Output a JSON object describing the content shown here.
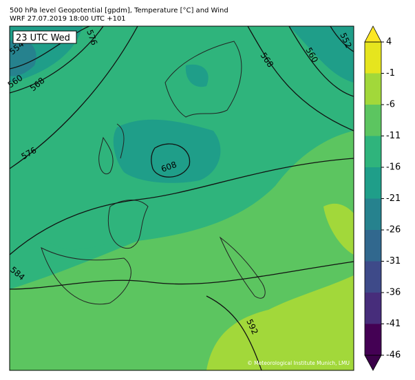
{
  "header": {
    "title": "500 hPa level Geopotential [gpdm], Temperature [°C] and Wind",
    "subtitle": "WRF 27.07.2019 18:00 UTC +101"
  },
  "time_label": "23 UTC Wed",
  "contour_labels": [
    554,
    560,
    568,
    576,
    568,
    560,
    552,
    576,
    608,
    584,
    592
  ],
  "copyright": "© Meteorological Institute Munich, LMU",
  "colorbar": {
    "levels": [
      4,
      -1,
      -6,
      -11,
      -16,
      -21,
      -26,
      -31,
      -36,
      -41,
      -46
    ],
    "colors": [
      "#e6e51e",
      "#a2d83a",
      "#5cc560",
      "#2fb47c",
      "#1f9e89",
      "#26828e",
      "#31688e",
      "#3e4a89",
      "#472d7b",
      "#440154"
    ]
  }
}
